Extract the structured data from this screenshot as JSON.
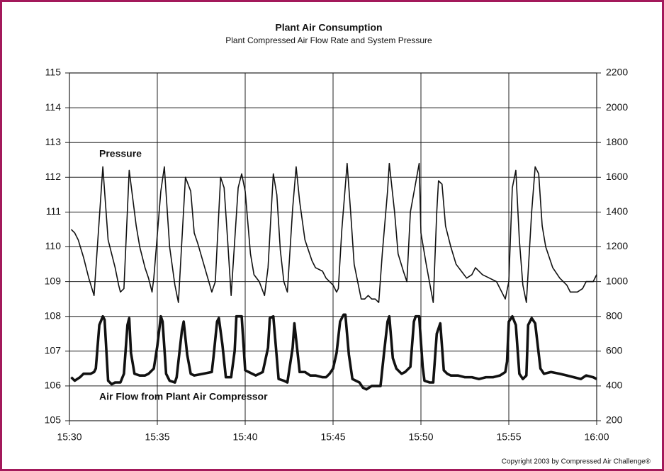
{
  "chart_data": {
    "type": "line",
    "title": "Plant Air Consumption",
    "subtitle": "Plant Compressed Air Flow Rate and System Pressure",
    "annotations": [
      "Copyright 2003 by Compressed Air Challenge®"
    ],
    "xlim": [
      930,
      960
    ],
    "xticks": [
      {
        "value": 930,
        "label": "15:30"
      },
      {
        "value": 935,
        "label": "15:35"
      },
      {
        "value": 940,
        "label": "15:40"
      },
      {
        "value": 945,
        "label": "15:45"
      },
      {
        "value": 950,
        "label": "15:50"
      },
      {
        "value": 955,
        "label": "15:55"
      },
      {
        "value": 960,
        "label": "16:00"
      }
    ],
    "ylim": [
      105,
      115
    ],
    "yticks": [
      105,
      106,
      107,
      108,
      109,
      110,
      111,
      112,
      113,
      114,
      115
    ],
    "y2lim": [
      200,
      2200
    ],
    "y2ticks": [
      200,
      400,
      600,
      800,
      1000,
      1200,
      1400,
      1600,
      1800,
      2000,
      2200
    ],
    "grid": true,
    "series": [
      {
        "name": "Pressure",
        "color": "#111111",
        "axis": "y",
        "x": [
          930.1,
          930.3,
          930.5,
          930.8,
          931.1,
          931.4,
          931.9,
          932.2,
          932.6,
          932.8,
          932.9,
          933.1,
          933.4,
          933.8,
          934.0,
          934.3,
          934.5,
          934.7,
          934.8,
          935.2,
          935.4,
          935.7,
          936.0,
          936.2,
          936.6,
          936.9,
          937.1,
          937.3,
          937.7,
          938.1,
          938.3,
          938.6,
          938.8,
          939.0,
          939.2,
          939.6,
          939.8,
          940.0,
          940.3,
          940.5,
          940.8,
          941.1,
          941.3,
          941.6,
          941.8,
          942.0,
          942.2,
          942.4,
          942.7,
          942.9,
          943.1,
          943.4,
          943.8,
          944.0,
          944.4,
          944.6,
          944.8,
          945.0,
          945.2,
          945.3,
          945.5,
          945.8,
          946.0,
          946.2,
          946.4,
          946.6,
          946.8,
          947.0,
          947.2,
          947.4,
          947.6,
          947.8,
          948.1,
          948.2,
          948.5,
          948.7,
          949.0,
          949.2,
          949.4,
          949.9,
          950.0,
          950.3,
          950.7,
          950.9,
          951.0,
          951.2,
          951.4,
          951.7,
          952.0,
          952.3,
          952.6,
          952.9,
          953.1,
          953.5,
          953.9,
          954.3,
          954.4,
          954.8,
          955.0,
          955.2,
          955.4,
          955.6,
          955.8,
          956.0,
          956.3,
          956.5,
          956.7,
          956.9,
          957.1,
          957.3,
          957.5,
          957.9,
          958.3,
          958.5,
          958.9,
          959.2,
          959.4,
          959.8,
          960.0
        ],
        "values": [
          110.5,
          110.4,
          110.2,
          109.7,
          109.1,
          108.6,
          112.3,
          110.2,
          109.4,
          108.9,
          108.7,
          108.8,
          112.2,
          110.6,
          110.0,
          109.4,
          109.1,
          108.7,
          109.1,
          111.6,
          112.3,
          110.0,
          108.9,
          108.4,
          112.0,
          111.6,
          110.4,
          110.1,
          109.4,
          108.7,
          109.0,
          112.0,
          111.7,
          110.2,
          108.6,
          111.7,
          112.1,
          111.6,
          109.8,
          109.2,
          109.0,
          108.6,
          109.4,
          112.1,
          111.5,
          109.9,
          109.0,
          108.7,
          111.1,
          112.3,
          111.3,
          110.2,
          109.6,
          109.4,
          109.3,
          109.1,
          109.0,
          108.9,
          108.7,
          108.8,
          110.5,
          112.4,
          111.0,
          109.5,
          109.0,
          108.5,
          108.5,
          108.6,
          108.5,
          108.5,
          108.4,
          109.8,
          111.6,
          112.4,
          111.0,
          109.8,
          109.3,
          109.0,
          111.0,
          112.4,
          110.4,
          109.5,
          108.4,
          111.0,
          111.9,
          111.8,
          110.6,
          110.0,
          109.5,
          109.3,
          109.1,
          109.2,
          109.4,
          109.2,
          109.1,
          109.0,
          108.9,
          108.5,
          109.0,
          111.7,
          112.2,
          110.2,
          108.9,
          108.4,
          111.0,
          112.3,
          112.1,
          110.6,
          110.0,
          109.7,
          109.4,
          109.1,
          108.9,
          108.7,
          108.7,
          108.8,
          109.0,
          109.0,
          109.2
        ]
      },
      {
        "name": "Air Flow from Plant Air Compressor",
        "color": "#111111",
        "axis": "y2",
        "x": [
          930.1,
          930.3,
          930.6,
          930.8,
          931.2,
          931.4,
          931.5,
          931.7,
          931.9,
          932.0,
          932.2,
          932.4,
          932.6,
          932.9,
          933.1,
          933.3,
          933.4,
          933.5,
          933.7,
          934.0,
          934.3,
          934.5,
          934.8,
          935.0,
          935.2,
          935.3,
          935.5,
          935.7,
          936.0,
          936.1,
          936.4,
          936.5,
          936.7,
          936.9,
          937.1,
          937.6,
          938.1,
          938.2,
          938.4,
          938.5,
          938.7,
          938.9,
          939.2,
          939.4,
          939.5,
          939.8,
          940.0,
          940.2,
          940.6,
          941.0,
          941.3,
          941.4,
          941.6,
          941.8,
          941.9,
          942.2,
          942.4,
          942.7,
          942.8,
          943.1,
          943.4,
          943.7,
          944.0,
          944.4,
          944.6,
          944.8,
          945.0,
          945.2,
          945.4,
          945.6,
          945.7,
          945.9,
          946.1,
          946.5,
          946.7,
          946.9,
          947.2,
          947.5,
          947.7,
          947.9,
          948.1,
          948.2,
          948.4,
          948.6,
          948.9,
          949.1,
          949.4,
          949.6,
          949.7,
          949.9,
          950.1,
          950.2,
          950.5,
          950.7,
          950.9,
          951.1,
          951.3,
          951.5,
          951.7,
          952.1,
          952.5,
          952.9,
          953.3,
          953.7,
          954.1,
          954.5,
          954.8,
          954.9,
          955.0,
          955.2,
          955.4,
          955.6,
          955.8,
          956.0,
          956.1,
          956.3,
          956.5,
          956.8,
          957.0,
          957.4,
          957.9,
          958.3,
          958.7,
          959.1,
          959.4,
          959.8,
          960.0
        ],
        "values": [
          450,
          430,
          450,
          470,
          470,
          480,
          500,
          750,
          800,
          780,
          430,
          410,
          420,
          420,
          470,
          750,
          790,
          590,
          470,
          460,
          460,
          470,
          500,
          630,
          800,
          770,
          470,
          430,
          420,
          450,
          720,
          770,
          580,
          470,
          460,
          470,
          480,
          570,
          770,
          790,
          640,
          450,
          450,
          600,
          800,
          800,
          490,
          480,
          460,
          480,
          620,
          790,
          800,
          560,
          440,
          430,
          420,
          620,
          760,
          480,
          480,
          460,
          460,
          450,
          450,
          470,
          500,
          590,
          770,
          810,
          810,
          580,
          440,
          420,
          390,
          380,
          400,
          400,
          400,
          590,
          770,
          800,
          560,
          500,
          470,
          480,
          510,
          770,
          800,
          800,
          510,
          430,
          420,
          420,
          700,
          760,
          490,
          470,
          460,
          460,
          450,
          450,
          440,
          450,
          450,
          460,
          480,
          540,
          770,
          800,
          750,
          470,
          440,
          460,
          750,
          790,
          760,
          500,
          470,
          480,
          470,
          460,
          450,
          440,
          460,
          450,
          440
        ]
      }
    ]
  }
}
